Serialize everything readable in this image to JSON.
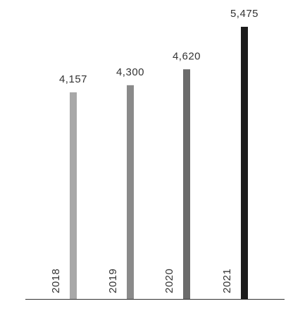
{
  "chart_data": {
    "type": "bar",
    "categories": [
      "2018",
      "2019",
      "2020",
      "2021"
    ],
    "values": [
      4157,
      4300,
      4620,
      5475
    ],
    "value_labels": [
      "4,157",
      "4,300",
      "4,620",
      "5,475"
    ],
    "bar_colors": [
      "#a8a8a8",
      "#8a8a8a",
      "#6b6b6b",
      "#1c1c1c"
    ],
    "baseline_color": "#333333",
    "text_color": "#333333",
    "grid": false,
    "legend": "none"
  }
}
